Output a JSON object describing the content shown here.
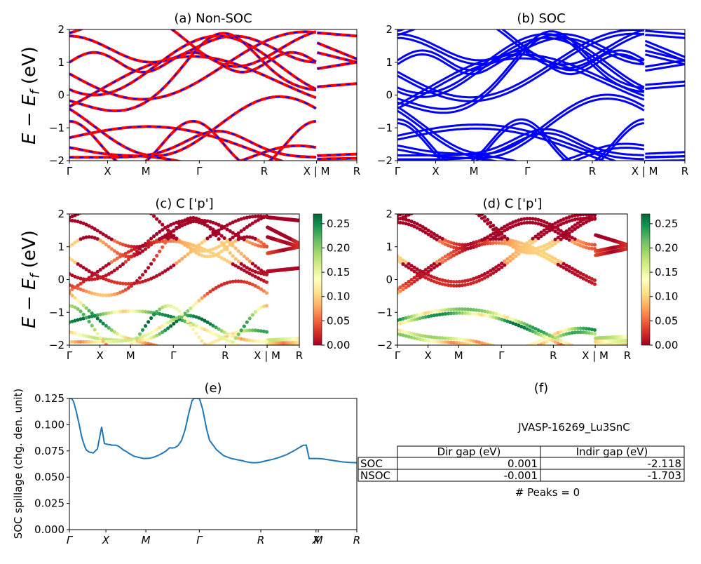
{
  "colors": {
    "nonsoc_line": "#ff0000",
    "nonsoc_dash": "#0000ff",
    "soc_line": "#0000ff",
    "spillage_line": "#1f77b4",
    "cmap": [
      "#a50026",
      "#d73027",
      "#f46d43",
      "#fdae61",
      "#fee08b",
      "#ffffbf",
      "#d9ef8b",
      "#a6d96a",
      "#66bd63",
      "#1a9850",
      "#006837"
    ]
  },
  "kpath_labels": [
    "Γ",
    "X",
    "M",
    "Γ",
    "R",
    "X | M",
    "R"
  ],
  "spill_kpath_labels": [
    "Γ",
    "X",
    "M",
    "Γ",
    "R",
    "X",
    "M",
    "R"
  ],
  "chart_data": [
    {
      "id": "a",
      "type": "line",
      "title": "(a) Non-SOC",
      "ylabel": "E − E_f (eV)",
      "ylim": [
        -2,
        2
      ],
      "yticks": [
        "2",
        "1",
        "0",
        "−1",
        "−2"
      ],
      "xticks": [
        "Γ",
        "X",
        "M",
        "Γ",
        "R",
        "X | M",
        "R"
      ]
    },
    {
      "id": "b",
      "type": "line",
      "title": "(b) SOC",
      "ylim": [
        -2,
        2
      ],
      "yticks": [
        "2",
        "1",
        "0",
        "−1",
        "−2"
      ],
      "xticks": [
        "Γ",
        "X",
        "M",
        "Γ",
        "R",
        "X | M",
        "R"
      ]
    },
    {
      "id": "c",
      "type": "scatter",
      "title": "(c)  C ['p']",
      "ylabel": "E − E_f (eV)",
      "ylim": [
        -2,
        2
      ],
      "yticks": [
        "2",
        "1",
        "0",
        "−1",
        "−2"
      ],
      "xticks": [
        "Γ",
        "X",
        "M",
        "Γ",
        "R",
        "X | M",
        "R"
      ],
      "colorbar": {
        "range": [
          0,
          0.27
        ],
        "ticks": [
          "0.25",
          "0.20",
          "0.15",
          "0.10",
          "0.05",
          "0.00"
        ]
      }
    },
    {
      "id": "d",
      "type": "scatter",
      "title": "(d) C ['p']",
      "ylim": [
        -2,
        2
      ],
      "yticks": [
        "2",
        "1",
        "0",
        "−1",
        "−2"
      ],
      "xticks": [
        "Γ",
        "X",
        "M",
        "Γ",
        "R",
        "X | M",
        "R"
      ],
      "colorbar": {
        "range": [
          0,
          0.27
        ],
        "ticks": [
          "0.25",
          "0.20",
          "0.15",
          "0.10",
          "0.05",
          "0.00"
        ]
      }
    },
    {
      "id": "e",
      "type": "line",
      "title": "(e)",
      "ylabel": "SOC spillage (chg. den. unit)",
      "ylim": [
        0,
        0.125
      ],
      "yticks": [
        "0.125",
        "0.100",
        "0.075",
        "0.050",
        "0.025",
        "0.000"
      ],
      "xticks": [
        "Γ",
        "X",
        "M",
        "Γ",
        "R",
        "X",
        "M",
        "R"
      ],
      "x": [
        0,
        3,
        6,
        10,
        14,
        17,
        19,
        21,
        22,
        24,
        28,
        34,
        40,
        46,
        50,
        56,
        58,
        60,
        63,
        66,
        68,
        70,
        72,
        74,
        76,
        78,
        81,
        84,
        88,
        92,
        98,
        106,
        114,
        120,
        126,
        132,
        138,
        143,
        146,
        150,
        155,
        160,
        165,
        170,
        175,
        178,
        180,
        181,
        184,
        186,
        190,
        196,
        200,
        210,
        220,
        230,
        240,
        248,
        250,
        258,
        262,
        266,
        270,
        274,
        280,
        290,
        300,
        310,
        320,
        330,
        334,
        338,
        342,
        346,
        350,
        354,
        360,
        370,
        380,
        390,
        400,
        410
      ],
      "values": [
        0.125,
        0.125,
        0.122,
        0.112,
        0.1,
        0.09,
        0.085,
        0.081,
        0.079,
        0.076,
        0.074,
        0.073,
        0.077,
        0.098,
        0.082,
        0.081,
        0.081,
        0.0805,
        0.0805,
        0.0805,
        0.08,
        0.0795,
        0.0785,
        0.0775,
        0.0765,
        0.0755,
        0.0745,
        0.073,
        0.0715,
        0.07,
        0.069,
        0.0678,
        0.068,
        0.069,
        0.0705,
        0.0725,
        0.075,
        0.078,
        0.0778,
        0.078,
        0.08,
        0.085,
        0.095,
        0.11,
        0.123,
        0.125,
        0.125,
        0.125,
        0.125,
        0.124,
        0.115,
        0.095,
        0.085,
        0.076,
        0.0705,
        0.068,
        0.0665,
        0.0655,
        0.065,
        0.064,
        0.0638,
        0.0638,
        0.064,
        0.0645,
        0.0655,
        0.067,
        0.069,
        0.0715,
        0.075,
        0.079,
        0.0805,
        0.0805,
        0.0678,
        0.0678,
        0.0678,
        0.0678,
        0.0675,
        0.0665,
        0.0655,
        0.0645,
        0.064,
        0.0638
      ],
      "xlim": [
        0,
        410
      ]
    },
    {
      "id": "f",
      "type": "table",
      "title": "(f)",
      "caption": "JVASP-16269_Lu3SnC",
      "columns": [
        "Dir gap (eV)",
        "Indir gap (eV)"
      ],
      "rows": [
        {
          "label": "SOC",
          "cells": [
            "0.001",
            "-2.118"
          ]
        },
        {
          "label": "NSOC",
          "cells": [
            "-0.001",
            "-1.703"
          ]
        }
      ],
      "footer": "# Peaks = 0"
    }
  ]
}
